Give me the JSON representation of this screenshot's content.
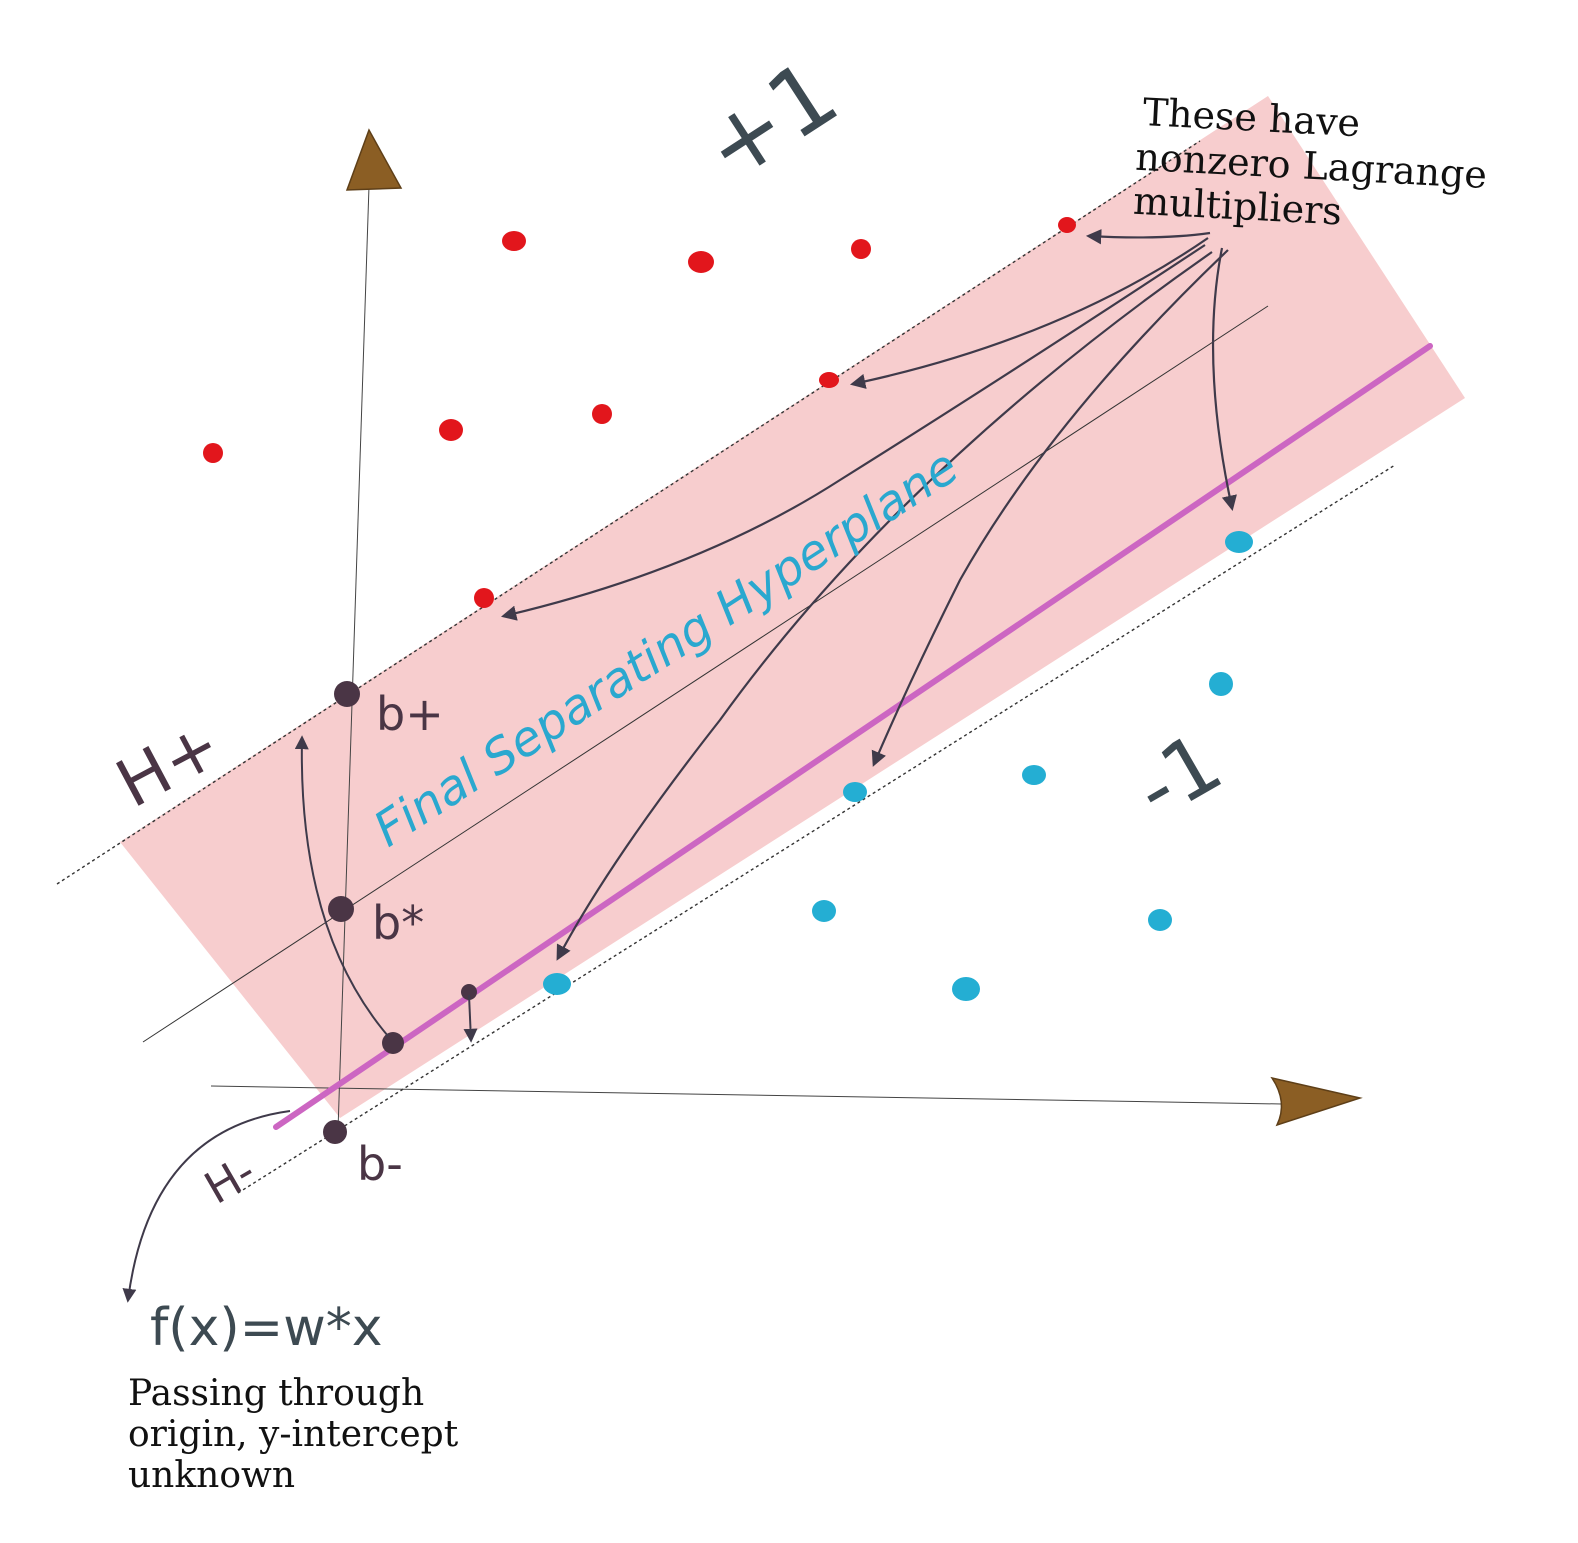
{
  "labels": {
    "class_pos": "+1",
    "class_neg": "-1",
    "h_plus": "H+",
    "h_minus": "H-",
    "b_plus": "b+",
    "b_star": "b*",
    "b_minus": "b-",
    "hyperplane": "Final Separating Hyperplane",
    "function": "f(x)=w*x"
  },
  "notes": {
    "support_vectors": [
      "These have",
      "nonzero Lagrange",
      "multipliers"
    ],
    "origin_line": [
      "Passing through",
      "origin, y-intercept",
      "unknown"
    ]
  },
  "colors": {
    "margin_band": "#f7cdce",
    "positive_points": "#e2161c",
    "negative_points": "#24aed3",
    "hyperplane_line": "#cc66c2",
    "axis_arrowheads": "#8b5e24",
    "annotation_arrows": "#3f3a4a",
    "intercept_points": "#4a3545",
    "hyperplane_label": "#2aa8cf"
  }
}
